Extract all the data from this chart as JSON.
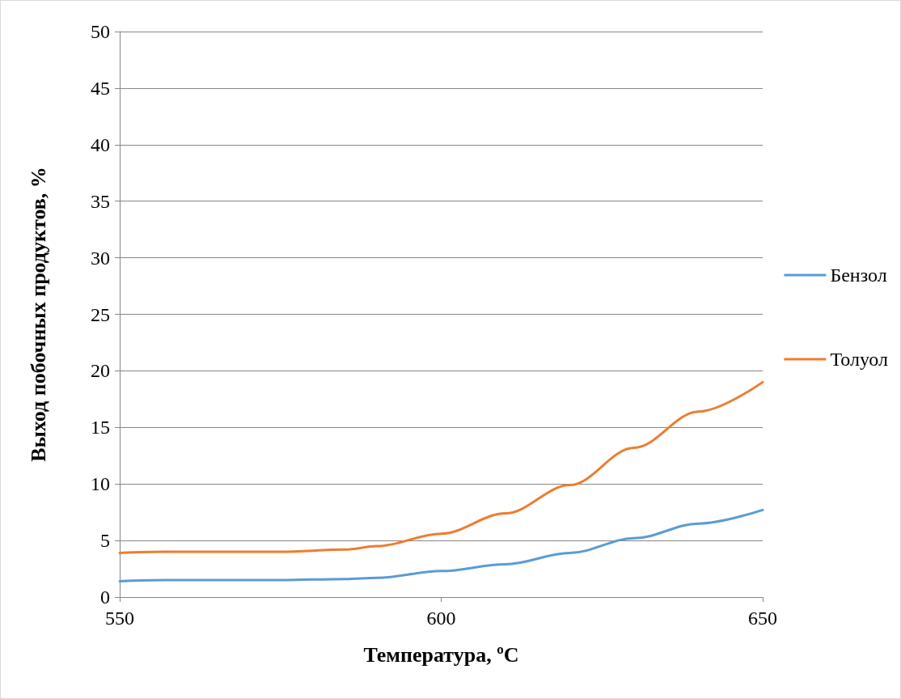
{
  "chart_data": {
    "type": "line",
    "xlabel": "Температура, ºC",
    "ylabel": "Выход побочных продуктов, %",
    "x": [
      550,
      557,
      565,
      575,
      585,
      590,
      600,
      610,
      620,
      630,
      640,
      650
    ],
    "series": [
      {
        "name": "Бензол",
        "color": "#5b9bd5",
        "values": [
          1.4,
          1.5,
          1.5,
          1.5,
          1.6,
          1.7,
          2.3,
          2.9,
          3.9,
          5.2,
          6.5,
          7.7
        ]
      },
      {
        "name": "Толуол",
        "color": "#ed7d31",
        "values": [
          3.9,
          4.0,
          4.0,
          4.0,
          4.2,
          4.5,
          5.6,
          7.4,
          9.9,
          13.2,
          16.4,
          19.0
        ]
      }
    ],
    "xlim": [
      550,
      650
    ],
    "xticks": [
      550,
      600,
      650
    ],
    "ylim": [
      0,
      50
    ],
    "yticks": [
      0,
      5,
      10,
      15,
      20,
      25,
      30,
      35,
      40,
      45,
      50
    ],
    "grid": "y",
    "legend": "right",
    "marker": "none",
    "line_style": "solid"
  }
}
